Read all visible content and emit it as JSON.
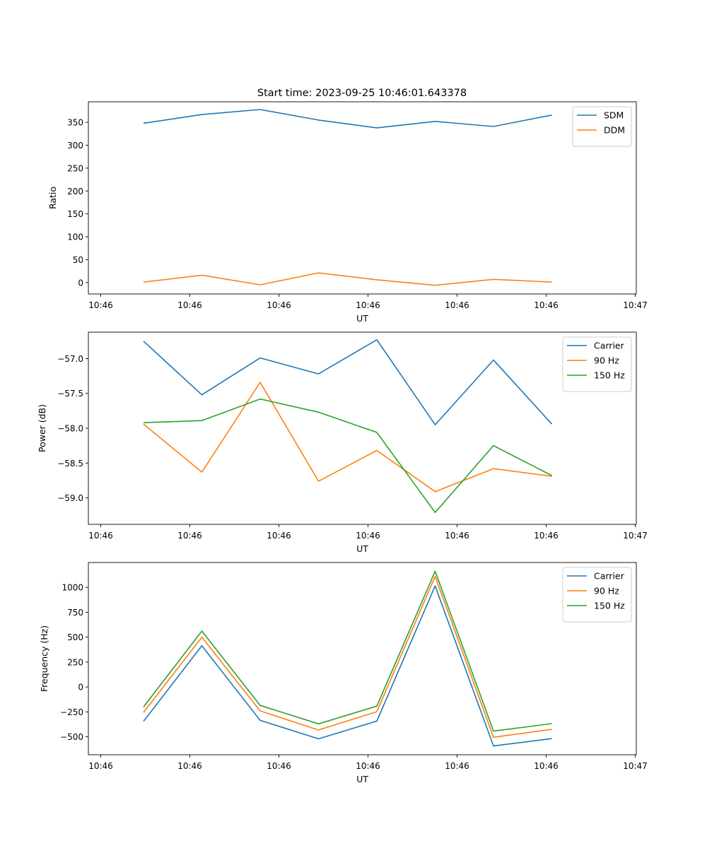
{
  "figure": {
    "title": "Start time: 2023-09-25 10:46:01.643378"
  },
  "colors": {
    "blue": "#1f77b4",
    "orange": "#ff7f0e",
    "green": "#2ca02c"
  },
  "chart_data": [
    {
      "type": "line",
      "title": "Start time: 2023-09-25 10:46:01.643378",
      "xlabel": "UT",
      "ylabel": "Ratio",
      "x": [
        1,
        2,
        3,
        4,
        5,
        6,
        7,
        8
      ],
      "xlim": [
        0.8,
        9.2
      ],
      "xticks": [
        1,
        2.5,
        4,
        5.5,
        7,
        8.5
      ],
      "xtick_values": [
        0.8,
        2.32,
        3.84,
        5.36,
        6.88,
        8.4,
        9.92
      ],
      "xtick_labels": [
        "10:46",
        "10:46",
        "10:46",
        "10:46",
        "10:46",
        "10:46",
        "10:47"
      ],
      "ylim": [
        -25,
        395
      ],
      "yticks": [
        0,
        50,
        100,
        150,
        200,
        250,
        300,
        350
      ],
      "ytick_labels": [
        "0",
        "50",
        "100",
        "150",
        "200",
        "250",
        "300",
        "350"
      ],
      "legend_position": "top-right",
      "series": [
        {
          "name": "SDM",
          "color": "#1f77b4",
          "values": [
            348,
            367,
            378,
            355,
            338,
            352,
            341,
            366
          ]
        },
        {
          "name": "DDM",
          "color": "#ff7f0e",
          "values": [
            1,
            16,
            -5,
            21,
            6,
            -6,
            7,
            1
          ]
        }
      ]
    },
    {
      "type": "line",
      "title": "",
      "xlabel": "UT",
      "ylabel": "Power (dB)",
      "x": [
        1,
        2,
        3,
        4,
        5,
        6,
        7,
        8
      ],
      "xtick_values": [
        0.8,
        2.32,
        3.84,
        5.36,
        6.88,
        8.4,
        9.92
      ],
      "xtick_labels": [
        "10:46",
        "10:46",
        "10:46",
        "10:46",
        "10:46",
        "10:46",
        "10:47"
      ],
      "ylim": [
        -59.38,
        -56.62
      ],
      "yticks": [
        -59.0,
        -58.5,
        -58.0,
        -57.5,
        -57.0
      ],
      "ytick_labels": [
        "−59.0",
        "−58.5",
        "−58.0",
        "−57.5",
        "−57.0"
      ],
      "legend_position": "top-right",
      "series": [
        {
          "name": "Carrier",
          "color": "#1f77b4",
          "values": [
            -56.75,
            -57.52,
            -56.99,
            -57.22,
            -56.73,
            -57.95,
            -57.02,
            -57.94
          ]
        },
        {
          "name": "90 Hz",
          "color": "#ff7f0e",
          "values": [
            -57.94,
            -58.63,
            -57.34,
            -58.76,
            -58.32,
            -58.91,
            -58.58,
            -58.69
          ]
        },
        {
          "name": "150 Hz",
          "color": "#2ca02c",
          "values": [
            -57.92,
            -57.89,
            -57.58,
            -57.77,
            -58.06,
            -59.21,
            -58.25,
            -58.68
          ]
        }
      ]
    },
    {
      "type": "line",
      "title": "",
      "xlabel": "UT",
      "ylabel": "Frequency (Hz)",
      "x": [
        1,
        2,
        3,
        4,
        5,
        6,
        7,
        8
      ],
      "xtick_values": [
        0.8,
        2.32,
        3.84,
        5.36,
        6.88,
        8.4,
        9.92
      ],
      "xtick_labels": [
        "10:46",
        "10:46",
        "10:46",
        "10:46",
        "10:46",
        "10:46",
        "10:47"
      ],
      "ylim": [
        -680,
        1250
      ],
      "yticks": [
        -500,
        -250,
        0,
        250,
        500,
        750,
        1000
      ],
      "ytick_labels": [
        "−500",
        "−250",
        "0",
        "250",
        "500",
        "750",
        "1000"
      ],
      "legend_position": "top-right",
      "series": [
        {
          "name": "Carrier",
          "color": "#1f77b4",
          "values": [
            -345,
            415,
            -335,
            -520,
            -342,
            1015,
            -592,
            -518
          ]
        },
        {
          "name": "90 Hz",
          "color": "#ff7f0e",
          "values": [
            -255,
            500,
            -240,
            -432,
            -248,
            1110,
            -505,
            -425
          ]
        },
        {
          "name": "150 Hz",
          "color": "#2ca02c",
          "values": [
            -200,
            562,
            -185,
            -370,
            -192,
            1163,
            -443,
            -368
          ]
        }
      ]
    }
  ]
}
